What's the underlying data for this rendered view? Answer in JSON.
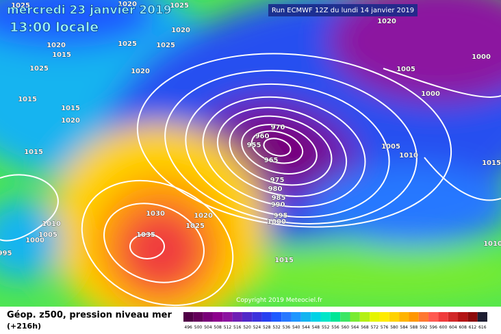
{
  "header": {
    "date": "mercredi 23 janvier 2019",
    "time": "13:00 locale",
    "run": "Run ECMWF 12Z du lundi 14 janvier 2019",
    "copyright": "Copyright 2019 Meteociel.fr"
  },
  "footer": {
    "title": "Géop. z500, pression niveau mer",
    "lead": "(+216h)"
  },
  "isobar_labels": [
    "1025",
    "1020",
    "1025",
    "1020",
    "1025",
    "1025",
    "1020",
    "1015",
    "1025",
    "1020",
    "1015",
    "1015",
    "1020",
    "1015",
    "970",
    "960",
    "955",
    "965",
    "975",
    "980",
    "985",
    "990",
    "995",
    "1000",
    "1020",
    "1005",
    "1000",
    "1000",
    "1005",
    "1010",
    "1015",
    "1030",
    "1035",
    "1025",
    "1020",
    "1010",
    "1005",
    "1000",
    "995",
    "1015",
    "1010"
  ],
  "scale": {
    "values": [
      496,
      500,
      504,
      508,
      512,
      516,
      520,
      524,
      528,
      532,
      536,
      540,
      544,
      548,
      552,
      556,
      560,
      564,
      568,
      572,
      576,
      580,
      584,
      588,
      592,
      596,
      600,
      604,
      608,
      612,
      616
    ],
    "colors": [
      "#500046",
      "#64005a",
      "#780078",
      "#8c008c",
      "#8c14a0",
      "#6e1eb4",
      "#5028c8",
      "#3c32dc",
      "#2840f0",
      "#1e5aff",
      "#2878ff",
      "#1e96ff",
      "#14b4f0",
      "#00d2e6",
      "#00e6c8",
      "#00e696",
      "#3ce664",
      "#78eb32",
      "#b4f014",
      "#e6f500",
      "#ffeb00",
      "#ffd200",
      "#ffb400",
      "#ff9600",
      "#ff7832",
      "#ff5a50",
      "#f03c3c",
      "#d22828",
      "#b41414",
      "#8c0a0a",
      "#1e1e32"
    ]
  }
}
